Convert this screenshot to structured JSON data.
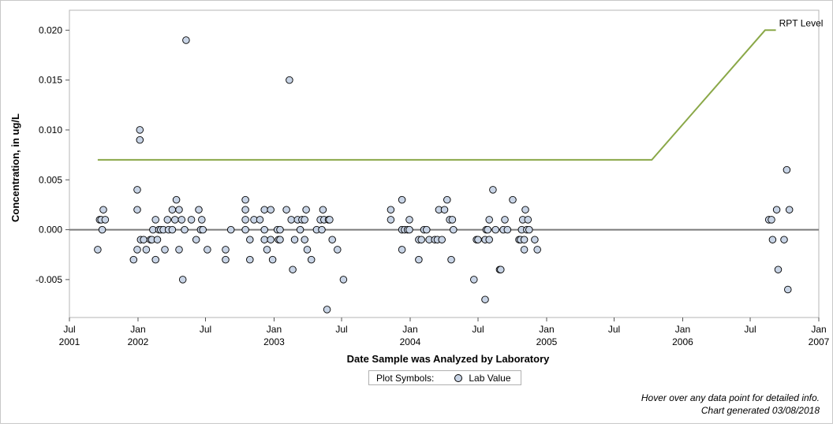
{
  "chart_data": {
    "type": "scatter",
    "title": "",
    "xlabel": "Date Sample was Analyzed by Laboratory",
    "ylabel": "Concentration, in ug/L",
    "xlim": [
      "2001-07-01",
      "2007-01-01"
    ],
    "ylim": [
      -0.0088,
      0.022
    ],
    "x_ticks": [
      {
        "date": "2001-07-01",
        "label1": "Jul",
        "label2": "2001"
      },
      {
        "date": "2002-01-01",
        "label1": "Jan",
        "label2": "2002"
      },
      {
        "date": "2002-07-01",
        "label1": "Jul",
        "label2": ""
      },
      {
        "date": "2003-01-01",
        "label1": "Jan",
        "label2": "2003"
      },
      {
        "date": "2003-07-01",
        "label1": "Jul",
        "label2": ""
      },
      {
        "date": "2004-01-01",
        "label1": "Jan",
        "label2": "2004"
      },
      {
        "date": "2004-07-01",
        "label1": "Jul",
        "label2": ""
      },
      {
        "date": "2005-01-01",
        "label1": "Jan",
        "label2": "2005"
      },
      {
        "date": "2005-07-01",
        "label1": "Jul",
        "label2": ""
      },
      {
        "date": "2006-01-01",
        "label1": "Jan",
        "label2": "2006"
      },
      {
        "date": "2006-07-01",
        "label1": "Jul",
        "label2": ""
      },
      {
        "date": "2007-01-01",
        "label1": "Jan",
        "label2": "2007"
      }
    ],
    "y_ticks": [
      {
        "value": 0.02,
        "label": "0.020"
      },
      {
        "value": 0.015,
        "label": "0.015"
      },
      {
        "value": 0.01,
        "label": "0.010"
      },
      {
        "value": 0.005,
        "label": "0.005"
      },
      {
        "value": 0.0,
        "label": "0.000"
      },
      {
        "value": -0.005,
        "label": "-0.005"
      }
    ],
    "grid": true,
    "zero_line": 0,
    "reference_line": {
      "name": "RPT Level",
      "color": "#8aa848",
      "points": [
        [
          "2001-09-15",
          0.007
        ],
        [
          "2005-10-10",
          0.007
        ],
        [
          "2006-08-10",
          0.02
        ],
        [
          "2006-09-08",
          0.02
        ]
      ]
    },
    "series": [
      {
        "name": "Lab Value",
        "marker_fill": "#c8d4e6",
        "marker_edge": "#000000",
        "points": [
          [
            "2001-09-15",
            -0.002
          ],
          [
            "2001-09-20",
            0.001
          ],
          [
            "2001-09-24",
            0.001
          ],
          [
            "2001-09-27",
            0.0
          ],
          [
            "2001-09-30",
            0.002
          ],
          [
            "2001-10-05",
            0.001
          ],
          [
            "2001-12-20",
            -0.003
          ],
          [
            "2001-12-30",
            0.004
          ],
          [
            "2001-12-30",
            0.002
          ],
          [
            "2001-12-30",
            -0.002
          ],
          [
            "2002-01-06",
            0.01
          ],
          [
            "2002-01-06",
            0.009
          ],
          [
            "2002-01-08",
            -0.001
          ],
          [
            "2002-01-16",
            -0.001
          ],
          [
            "2002-01-23",
            -0.002
          ],
          [
            "2002-02-03",
            -0.001
          ],
          [
            "2002-02-07",
            -0.001
          ],
          [
            "2002-02-10",
            0.0
          ],
          [
            "2002-02-17",
            0.001
          ],
          [
            "2002-02-17",
            -0.003
          ],
          [
            "2002-02-22",
            -0.001
          ],
          [
            "2002-02-26",
            0.0
          ],
          [
            "2002-03-03",
            0.0
          ],
          [
            "2002-03-10",
            0.0
          ],
          [
            "2002-03-14",
            -0.002
          ],
          [
            "2002-03-21",
            0.001
          ],
          [
            "2002-03-24",
            0.0
          ],
          [
            "2002-04-03",
            0.002
          ],
          [
            "2002-04-03",
            0.0
          ],
          [
            "2002-04-10",
            0.001
          ],
          [
            "2002-04-14",
            0.003
          ],
          [
            "2002-04-21",
            -0.002
          ],
          [
            "2002-04-21",
            0.002
          ],
          [
            "2002-04-28",
            0.001
          ],
          [
            "2002-05-01",
            -0.005
          ],
          [
            "2002-05-06",
            0.0
          ],
          [
            "2002-05-10",
            0.019
          ],
          [
            "2002-05-24",
            0.001
          ],
          [
            "2002-06-06",
            -0.001
          ],
          [
            "2002-06-13",
            0.002
          ],
          [
            "2002-06-18",
            0.0
          ],
          [
            "2002-06-21",
            0.001
          ],
          [
            "2002-06-24",
            0.0
          ],
          [
            "2002-07-06",
            -0.002
          ],
          [
            "2002-08-24",
            -0.002
          ],
          [
            "2002-08-24",
            -0.003
          ],
          [
            "2002-09-07",
            0.0
          ],
          [
            "2002-10-16",
            0.003
          ],
          [
            "2002-10-16",
            0.002
          ],
          [
            "2002-10-16",
            0.001
          ],
          [
            "2002-10-16",
            0.0
          ],
          [
            "2002-10-28",
            -0.001
          ],
          [
            "2002-10-28",
            -0.003
          ],
          [
            "2002-11-08",
            0.001
          ],
          [
            "2002-11-24",
            0.001
          ],
          [
            "2002-12-06",
            0.002
          ],
          [
            "2002-12-06",
            0.0
          ],
          [
            "2002-12-06",
            -0.001
          ],
          [
            "2002-12-13",
            -0.002
          ],
          [
            "2002-12-23",
            0.002
          ],
          [
            "2002-12-23",
            -0.001
          ],
          [
            "2002-12-28",
            -0.003
          ],
          [
            "2003-01-10",
            0.0
          ],
          [
            "2003-01-13",
            -0.001
          ],
          [
            "2003-01-17",
            0.0
          ],
          [
            "2003-01-17",
            -0.001
          ],
          [
            "2003-02-03",
            0.002
          ],
          [
            "2003-02-11",
            0.015
          ],
          [
            "2003-02-16",
            0.001
          ],
          [
            "2003-02-20",
            -0.004
          ],
          [
            "2003-02-25",
            -0.001
          ],
          [
            "2003-03-05",
            0.001
          ],
          [
            "2003-03-12",
            0.0
          ],
          [
            "2003-03-17",
            0.001
          ],
          [
            "2003-03-24",
            0.001
          ],
          [
            "2003-03-24",
            -0.001
          ],
          [
            "2003-03-28",
            0.002
          ],
          [
            "2003-03-31",
            -0.002
          ],
          [
            "2003-04-11",
            -0.003
          ],
          [
            "2003-04-25",
            0.0
          ],
          [
            "2003-05-05",
            0.001
          ],
          [
            "2003-05-09",
            0.0
          ],
          [
            "2003-05-12",
            0.002
          ],
          [
            "2003-05-15",
            0.001
          ],
          [
            "2003-05-23",
            -0.008
          ],
          [
            "2003-05-27",
            0.001
          ],
          [
            "2003-05-30",
            0.001
          ],
          [
            "2003-06-06",
            -0.001
          ],
          [
            "2003-06-20",
            -0.002
          ],
          [
            "2003-07-06",
            -0.005
          ],
          [
            "2003-11-10",
            0.002
          ],
          [
            "2003-11-10",
            0.001
          ],
          [
            "2003-12-10",
            0.003
          ],
          [
            "2003-12-10",
            0.0
          ],
          [
            "2003-12-10",
            -0.002
          ],
          [
            "2003-12-17",
            0.0
          ],
          [
            "2003-12-25",
            0.0
          ],
          [
            "2003-12-30",
            0.001
          ],
          [
            "2003-12-30",
            0.0
          ],
          [
            "2004-01-24",
            -0.001
          ],
          [
            "2004-01-24",
            -0.003
          ],
          [
            "2004-01-31",
            -0.001
          ],
          [
            "2004-02-07",
            0.0
          ],
          [
            "2004-02-14",
            0.0
          ],
          [
            "2004-02-21",
            -0.001
          ],
          [
            "2004-03-07",
            -0.001
          ],
          [
            "2004-03-14",
            -0.001
          ],
          [
            "2004-03-18",
            0.002
          ],
          [
            "2004-03-26",
            -0.001
          ],
          [
            "2004-04-02",
            0.002
          ],
          [
            "2004-04-09",
            0.003
          ],
          [
            "2004-04-16",
            0.001
          ],
          [
            "2004-04-20",
            -0.003
          ],
          [
            "2004-04-23",
            0.001
          ],
          [
            "2004-04-26",
            0.0
          ],
          [
            "2004-06-20",
            -0.005
          ],
          [
            "2004-06-27",
            -0.001
          ],
          [
            "2004-07-01",
            -0.001
          ],
          [
            "2004-07-20",
            -0.007
          ],
          [
            "2004-07-20",
            -0.001
          ],
          [
            "2004-07-23",
            0.0
          ],
          [
            "2004-07-27",
            0.0
          ],
          [
            "2004-07-31",
            0.001
          ],
          [
            "2004-07-31",
            -0.001
          ],
          [
            "2004-08-10",
            0.004
          ],
          [
            "2004-08-17",
            0.0
          ],
          [
            "2004-08-28",
            -0.004
          ],
          [
            "2004-08-31",
            -0.004
          ],
          [
            "2004-09-07",
            0.0
          ],
          [
            "2004-09-11",
            0.001
          ],
          [
            "2004-09-18",
            0.0
          ],
          [
            "2004-10-02",
            0.003
          ],
          [
            "2004-10-19",
            -0.001
          ],
          [
            "2004-10-23",
            -0.001
          ],
          [
            "2004-10-26",
            0.0
          ],
          [
            "2004-10-29",
            0.001
          ],
          [
            "2004-11-02",
            -0.001
          ],
          [
            "2004-11-02",
            -0.002
          ],
          [
            "2004-11-05",
            0.002
          ],
          [
            "2004-11-09",
            0.0
          ],
          [
            "2004-11-12",
            0.001
          ],
          [
            "2004-11-15",
            0.0
          ],
          [
            "2004-11-30",
            -0.001
          ],
          [
            "2004-12-07",
            -0.002
          ],
          [
            "2006-08-20",
            0.001
          ],
          [
            "2006-08-27",
            0.001
          ],
          [
            "2006-08-30",
            -0.001
          ],
          [
            "2006-09-10",
            0.002
          ],
          [
            "2006-09-14",
            -0.004
          ],
          [
            "2006-09-30",
            -0.001
          ],
          [
            "2006-10-07",
            0.006
          ],
          [
            "2006-10-10",
            -0.006
          ],
          [
            "2006-10-14",
            0.002
          ]
        ]
      }
    ]
  },
  "legend": {
    "prefix": "Plot Symbols:",
    "items": [
      {
        "label": "Lab Value"
      }
    ]
  },
  "footer": {
    "line1": "Hover over any data point for detailed info.",
    "line2": "Chart generated 03/08/2018"
  }
}
